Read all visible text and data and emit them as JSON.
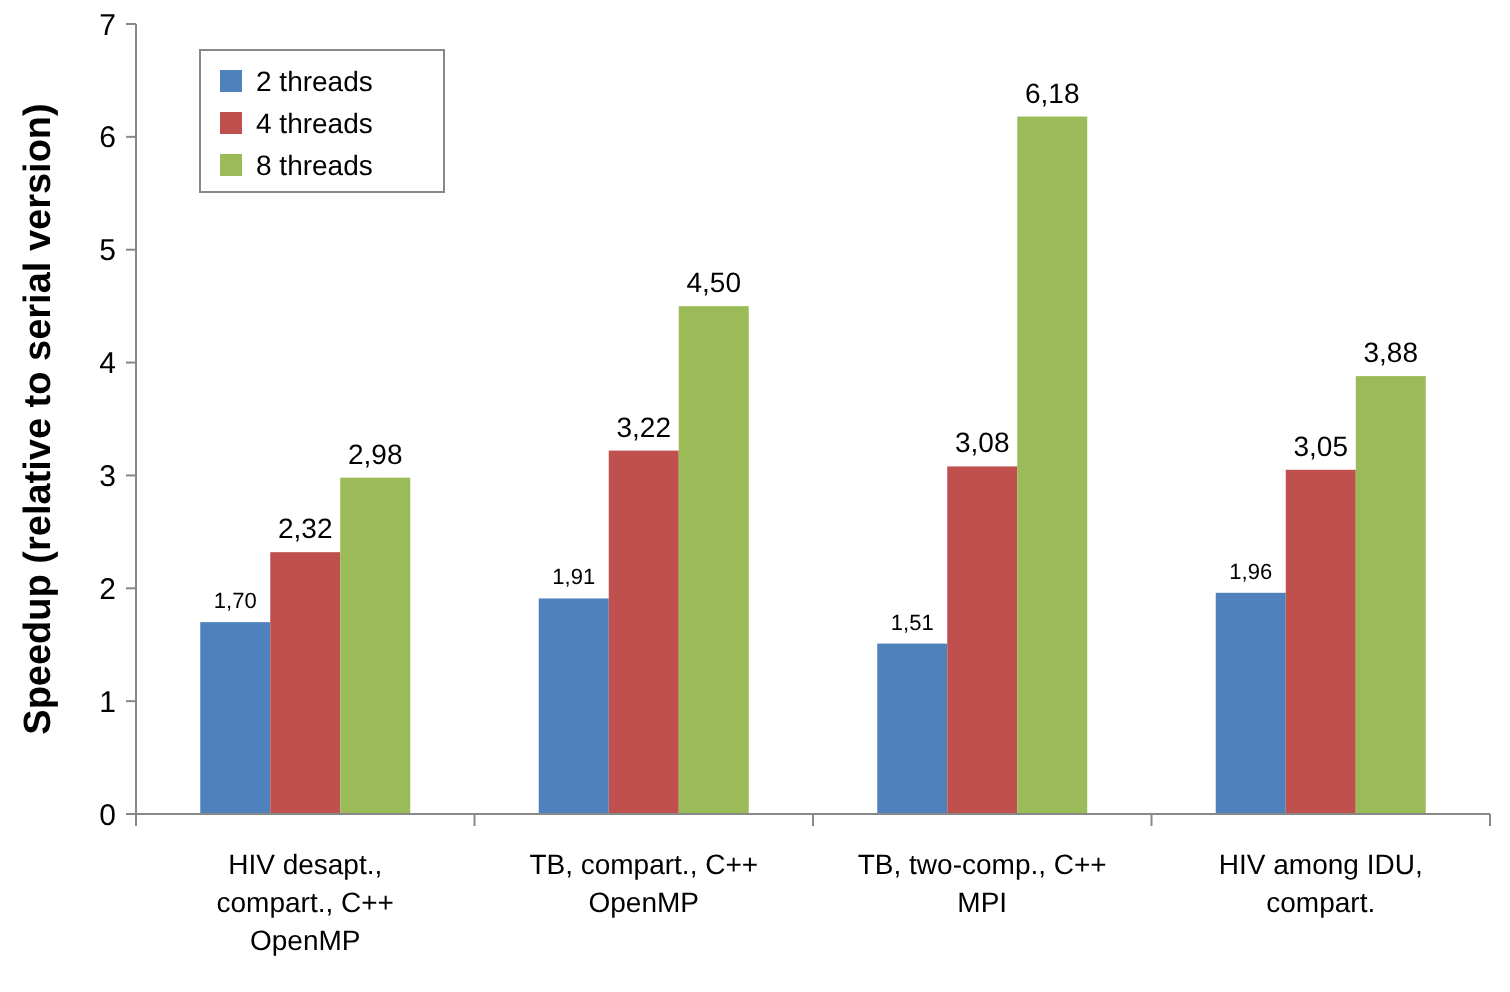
{
  "chart_data": {
    "type": "bar",
    "ylabel": "Speedup (relative to serial version)",
    "categories": [
      "HIV desapt.,\ncompart., C++\nOpenMP",
      "TB, compart., C++\nOpenMP",
      "TB, two-comp., C++\nMPI",
      "HIV among IDU,\ncompart."
    ],
    "series": [
      {
        "name": "2 threads",
        "color": "#4f81bd",
        "values": [
          1.7,
          1.91,
          1.51,
          1.96
        ],
        "value_labels": [
          "1,70",
          "1,91",
          "1,51",
          "1,96"
        ]
      },
      {
        "name": "4 threads",
        "color": "#c0504d",
        "values": [
          2.32,
          3.22,
          3.08,
          3.05
        ],
        "value_labels": [
          "2,32",
          "3,22",
          "3,08",
          "3,05"
        ]
      },
      {
        "name": "8 threads",
        "color": "#9bbb59",
        "values": [
          2.98,
          4.5,
          6.18,
          3.88
        ],
        "value_labels": [
          "2,98",
          "4,50",
          "6,18",
          "3,88"
        ]
      }
    ],
    "ylim": [
      0,
      7
    ],
    "yticks": [
      0,
      1,
      2,
      3,
      4,
      5,
      6,
      7
    ],
    "grid": false,
    "legend": "top left"
  }
}
